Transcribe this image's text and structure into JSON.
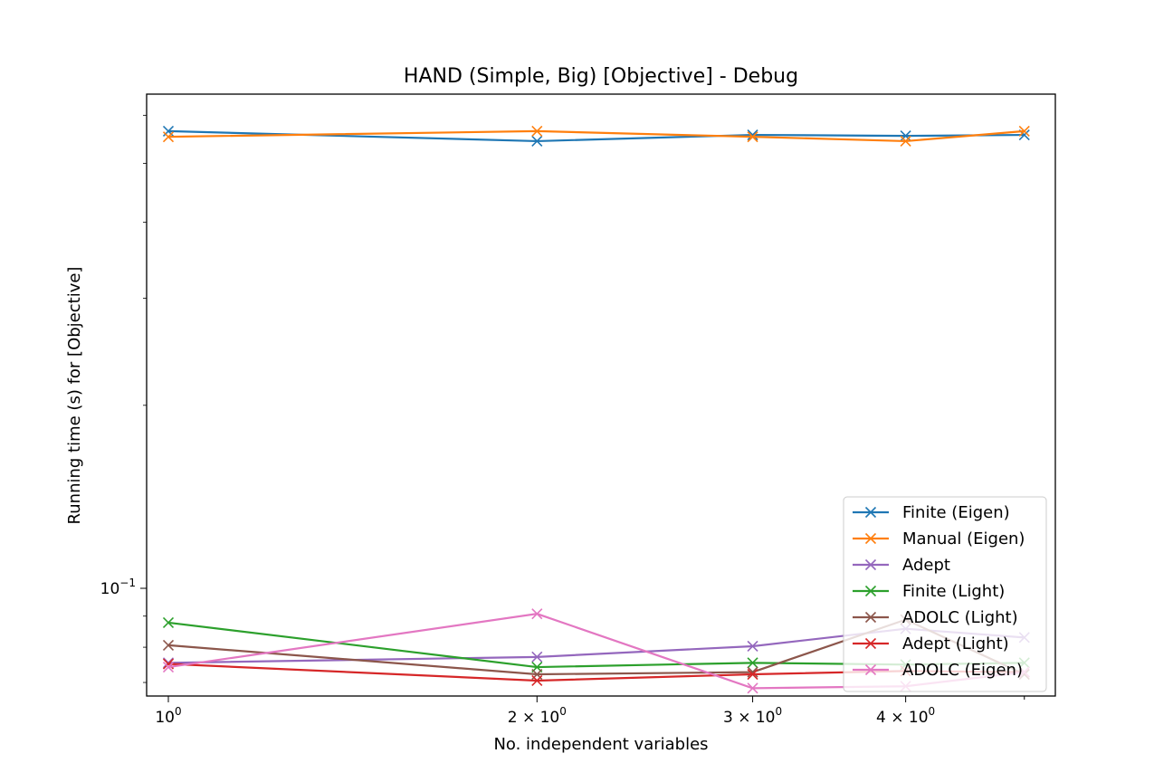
{
  "chart_data": {
    "type": "line",
    "title": "HAND (Simple, Big) [Objective] - Debug",
    "xlabel": "No. independent variables",
    "ylabel": "Running time (s) for [Objective]",
    "xscale": "log",
    "yscale": "log",
    "xlim": [
      0.96,
      5.3
    ],
    "ylim": [
      0.0665,
      0.65
    ],
    "x": [
      1,
      2,
      3,
      4,
      5
    ],
    "xticks": [
      {
        "value": 1,
        "base": "10",
        "exp": "0"
      },
      {
        "value": 2,
        "base": "2 × 10",
        "exp": "0"
      },
      {
        "value": 3,
        "base": "3 × 10",
        "exp": "0"
      },
      {
        "value": 4,
        "base": "4 × 10",
        "exp": "0"
      }
    ],
    "yticks": [
      {
        "value": 0.1,
        "base": "10",
        "exp": "−1"
      }
    ],
    "grid": false,
    "legend_position": "lower-right",
    "marker": "x",
    "series": [
      {
        "name": "Finite (Eigen)",
        "color": "#1f77b4",
        "values": [
          0.565,
          0.544,
          0.557,
          0.555,
          0.557
        ]
      },
      {
        "name": "Manual (Eigen)",
        "color": "#ff7f0e",
        "values": [
          0.553,
          0.565,
          0.553,
          0.544,
          0.565
        ]
      },
      {
        "name": "Adept",
        "color": "#9467bd",
        "values": [
          0.0754,
          0.0771,
          0.0803,
          0.0858,
          0.083
        ]
      },
      {
        "name": "Finite (Light)",
        "color": "#2ca02c",
        "values": [
          0.0878,
          0.0742,
          0.0754,
          0.0749,
          0.0754
        ]
      },
      {
        "name": "ADOLC (Light)",
        "color": "#8c564b",
        "values": [
          0.0806,
          0.0722,
          0.0728,
          0.0888,
          0.0722
        ]
      },
      {
        "name": "Adept (Light)",
        "color": "#d62728",
        "values": [
          0.0751,
          0.0705,
          0.0722,
          0.0731,
          0.0728
        ]
      },
      {
        "name": "ADOLC (Eigen)",
        "color": "#e377c2",
        "values": [
          0.0742,
          0.0908,
          0.0685,
          0.069,
          0.0728
        ]
      }
    ]
  }
}
